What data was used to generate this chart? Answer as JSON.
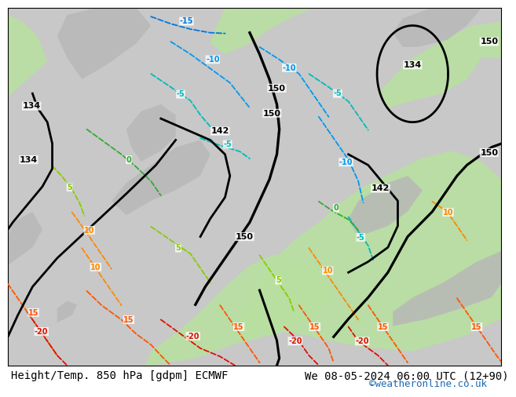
{
  "title_left": "Height/Temp. 850 hPa [gdpm] ECMWF",
  "title_right": "We 08-05-2024 06:00 UTC (12+90)",
  "credit": "©weatheronline.co.uk",
  "footer_fontsize": 10,
  "credit_fontsize": 9,
  "credit_color": "#1a6ab5"
}
